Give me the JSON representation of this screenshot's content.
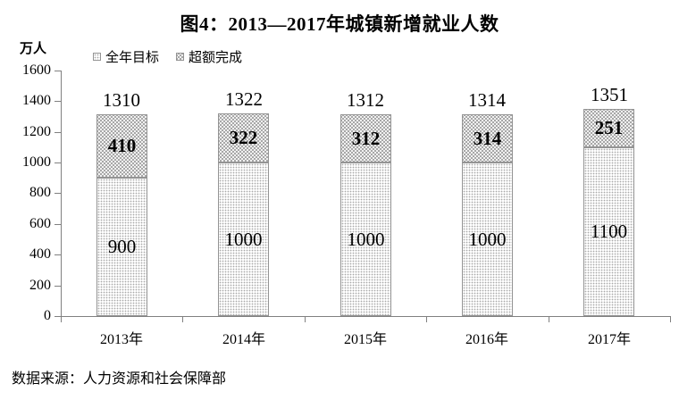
{
  "title": "图4：2013—2017年城镇新增就业人数",
  "y_axis_unit": "万人",
  "legend": [
    {
      "label": "全年目标",
      "swatch": "light-dots-icon"
    },
    {
      "label": "超额完成",
      "swatch": "dark-dots-icon"
    }
  ],
  "source": "数据来源：人力资源和社会保障部",
  "colors": {
    "light_segment_bg": "#ffffff",
    "light_segment_dot": "#a9a9a9",
    "dark_segment_bg": "#a7a7a7",
    "dark_segment_dot": "#ffffff",
    "segment_border": "#949494",
    "axis_line": "#808080",
    "text": "#000000"
  },
  "chart_data": {
    "type": "bar",
    "stacked": true,
    "title": "图4：2013—2017年城镇新增就业人数",
    "ylabel": "万人",
    "xlabel": "",
    "categories": [
      "2013年",
      "2014年",
      "2015年",
      "2016年",
      "2017年"
    ],
    "series": [
      {
        "name": "全年目标",
        "values": [
          900,
          1000,
          1000,
          1000,
          1100
        ]
      },
      {
        "name": "超额完成",
        "values": [
          410,
          322,
          312,
          314,
          251
        ]
      }
    ],
    "totals": [
      1310,
      1322,
      1312,
      1314,
      1351
    ],
    "ylim": [
      0,
      1600
    ],
    "ytick_step": 200,
    "grid": false,
    "legend_position": "top-left"
  }
}
